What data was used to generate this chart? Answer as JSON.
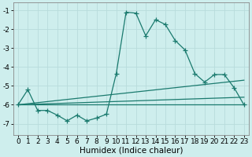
{
  "xlabel": "Humidex (Indice chaleur)",
  "bg_color": "#ceeeed",
  "grid_color": "#b8dcdc",
  "line_color": "#1a7a6e",
  "markersize": 4,
  "linewidth": 0.9,
  "xlim": [
    -0.5,
    23.5
  ],
  "ylim": [
    -7.6,
    -0.6
  ],
  "xticks": [
    0,
    1,
    2,
    3,
    4,
    5,
    6,
    7,
    8,
    9,
    10,
    11,
    12,
    13,
    14,
    15,
    16,
    17,
    18,
    19,
    20,
    21,
    22,
    23
  ],
  "yticks": [
    -1,
    -2,
    -3,
    -4,
    -5,
    -6,
    -7
  ],
  "series_main_x": [
    0,
    1,
    2,
    3,
    4,
    5,
    6,
    7,
    8,
    9,
    10,
    11,
    12,
    13,
    14,
    15,
    16,
    17,
    18,
    19,
    20,
    21,
    22,
    23
  ],
  "series_main_y": [
    -6.0,
    -5.2,
    -6.3,
    -6.3,
    -6.55,
    -6.85,
    -6.55,
    -6.85,
    -6.7,
    -6.5,
    -4.35,
    -1.1,
    -1.15,
    -2.35,
    -1.5,
    -1.75,
    -2.6,
    -3.1,
    -4.35,
    -4.8,
    -4.4,
    -4.4,
    -5.1,
    -6.0
  ],
  "line1_x": [
    0,
    23
  ],
  "line1_y": [
    -6.0,
    -6.0
  ],
  "line2_x": [
    0,
    23
  ],
  "line2_y": [
    -6.0,
    -5.6
  ],
  "line3_x": [
    0,
    23
  ],
  "line3_y": [
    -6.0,
    -4.7
  ],
  "tick_fontsize": 6.5,
  "label_fontsize": 7.5
}
